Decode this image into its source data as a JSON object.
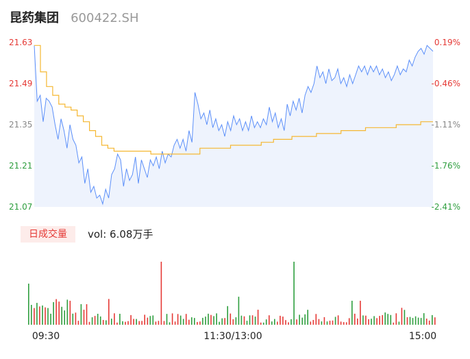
{
  "header": {
    "name": "昆药集团",
    "code": "600422.SH"
  },
  "volume": {
    "tab_label": "日成交量",
    "vol_label": "vol: 6.08万手"
  },
  "colors": {
    "price": "#5b8ff9",
    "avg": "#f5b731",
    "up": "#e53935",
    "down": "#2e9e3e",
    "fill": "#eef3fd"
  },
  "chart_data": {
    "type": "line",
    "price_axis": {
      "ylim": [
        21.07,
        21.63
      ],
      "ticks": [
        "21.63",
        "21.49",
        "21.35",
        "21.21",
        "21.07"
      ],
      "pct_ticks": [
        "0.19%",
        "-0.46%",
        "-1.11%",
        "-1.76%",
        "-2.41%"
      ]
    },
    "x_ticks": [
      "09:30",
      "11:30/13:00",
      "15:00"
    ],
    "series": [
      {
        "values": [
          21.62,
          21.43,
          21.45,
          21.36,
          21.44,
          21.43,
          21.41,
          21.35,
          21.3,
          21.37,
          21.33,
          21.27,
          21.35,
          21.3,
          21.28,
          21.22,
          21.24,
          21.15,
          21.2,
          21.12,
          21.14,
          21.1,
          21.11,
          21.08,
          21.13,
          21.1,
          21.18,
          21.2,
          21.25,
          21.23,
          21.14,
          21.2,
          21.16,
          21.18,
          21.24,
          21.15,
          21.23,
          21.2,
          21.17,
          21.23,
          21.21,
          21.24,
          21.2,
          21.26,
          21.22,
          21.25,
          21.24,
          21.28,
          21.3,
          21.27,
          21.3,
          21.26,
          21.33,
          21.29,
          21.46,
          21.42,
          21.37,
          21.39,
          21.35,
          21.4,
          21.34,
          21.37,
          21.33,
          21.35,
          21.31,
          21.36,
          21.33,
          21.38,
          21.35,
          21.37,
          21.33,
          21.36,
          21.33,
          21.38,
          21.34,
          21.36,
          21.34,
          21.37,
          21.35,
          21.41,
          21.36,
          21.39,
          21.34,
          21.37,
          21.33,
          21.42,
          21.38,
          21.43,
          21.4,
          21.44,
          21.39,
          21.45,
          21.48,
          21.46,
          21.49,
          21.55,
          21.51,
          21.53,
          21.49,
          21.54,
          21.5,
          21.51,
          21.54,
          21.49,
          21.51,
          21.48,
          21.52,
          21.49,
          21.52,
          21.55,
          21.53,
          21.55,
          21.52,
          21.55,
          21.53,
          21.55,
          21.52,
          21.54,
          21.51,
          21.53,
          21.5,
          21.52,
          21.55,
          21.52,
          21.54,
          21.53,
          21.57,
          21.55,
          21.58,
          21.6,
          21.61,
          21.59,
          21.62,
          21.61,
          21.6
        ]
      },
      {
        "values": [
          21.62,
          21.53,
          21.48,
          21.45,
          21.42,
          21.41,
          21.4,
          21.38,
          21.36,
          21.33,
          21.31,
          21.28,
          21.27,
          21.26,
          21.26,
          21.26,
          21.26,
          21.26,
          21.26,
          21.25,
          21.25,
          21.25,
          21.25,
          21.25,
          21.25,
          21.25,
          21.25,
          21.27,
          21.27,
          21.27,
          21.27,
          21.27,
          21.28,
          21.28,
          21.28,
          21.28,
          21.28,
          21.29,
          21.29,
          21.3,
          21.3,
          21.3,
          21.31,
          21.31,
          21.31,
          21.31,
          21.32,
          21.32,
          21.32,
          21.32,
          21.33,
          21.33,
          21.33,
          21.33,
          21.34,
          21.34,
          21.34,
          21.34,
          21.34,
          21.35,
          21.35,
          21.35,
          21.35,
          21.36,
          21.36,
          21.36
        ]
      }
    ]
  }
}
